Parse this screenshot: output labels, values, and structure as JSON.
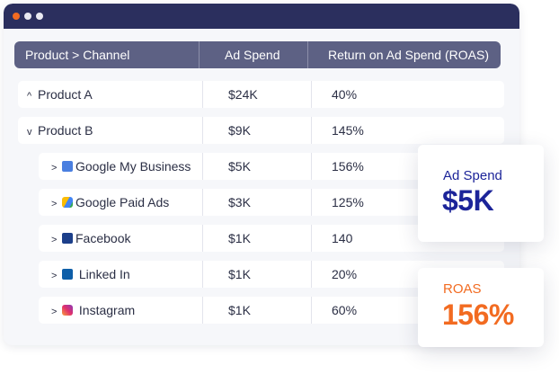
{
  "window": {
    "controls": [
      "close",
      "minimize",
      "maximize"
    ]
  },
  "table": {
    "headers": [
      "Product > Channel",
      "Ad Spend",
      "Return on Ad Spend (ROAS)"
    ],
    "rows": [
      {
        "name": "Product A",
        "spend": "$24K",
        "roas": "40%",
        "chevron": "^",
        "icon": ""
      },
      {
        "name": "Product B",
        "spend": "$9K",
        "roas": "145%",
        "chevron": "v",
        "icon": ""
      },
      {
        "name": "Google My Business",
        "spend": "$5K",
        "roas": "156%",
        "chevron": ">",
        "icon": "google-my-business-icon"
      },
      {
        "name": "Google Paid Ads",
        "spend": "$3K",
        "roas": "125%",
        "chevron": ">",
        "icon": "google-ads-icon"
      },
      {
        "name": "Facebook",
        "spend": "$1K",
        "roas": "140",
        "chevron": ">",
        "icon": "facebook-icon"
      },
      {
        "name": "Linked In",
        "spend": "$1K",
        "roas": "20%",
        "chevron": ">",
        "icon": "linkedin-icon"
      },
      {
        "name": "Instagram",
        "spend": "$1K",
        "roas": "60%",
        "chevron": ">",
        "icon": "instagram-icon"
      }
    ]
  },
  "cards": {
    "ad_spend": {
      "label": "Ad Spend",
      "value": "$5K",
      "color": "#1c2499"
    },
    "roas": {
      "label": "ROAS",
      "value": "156%",
      "color": "#f26b21"
    }
  },
  "colors": {
    "titlebar": "#2b2f5e",
    "header": "#5d6184",
    "accent_orange": "#f26b21",
    "accent_blue": "#1c2499"
  }
}
